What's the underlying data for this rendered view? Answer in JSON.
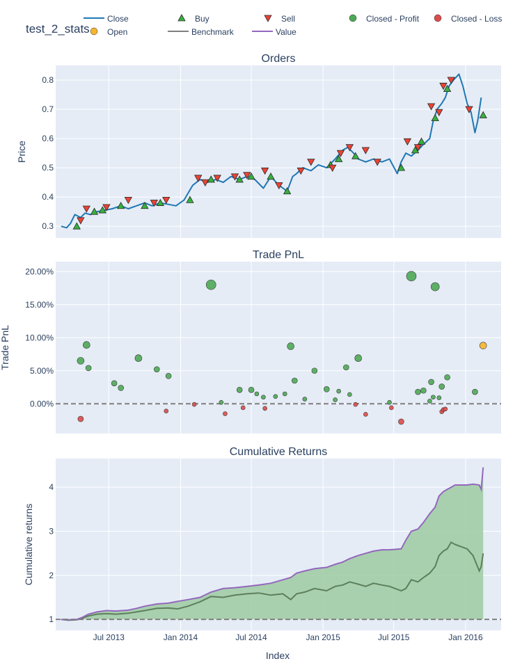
{
  "figure": {
    "title": "test_2_stats",
    "x_axis_title": "Index"
  },
  "legend": {
    "placement": "top",
    "items": [
      {
        "label": "Close",
        "symbol": "line",
        "color": "#1f77b4"
      },
      {
        "label": "Buy",
        "symbol": "triangle-up",
        "color": "#37b13f"
      },
      {
        "label": "Sell",
        "symbol": "triangle-down",
        "color": "#ea4335"
      },
      {
        "label": "Closed - Profit",
        "symbol": "circle",
        "color": "#4ea956"
      },
      {
        "label": "Closed - Loss",
        "symbol": "circle",
        "color": "#dc4c4a"
      },
      {
        "label": "Open",
        "symbol": "circle",
        "color": "#f6b52c"
      },
      {
        "label": "Benchmark",
        "symbol": "line",
        "color": "#7f7f7f"
      },
      {
        "label": "Value",
        "symbol": "line",
        "color": "#9467bd"
      }
    ]
  },
  "colors": {
    "plot_bg": "#e5ecf6",
    "close": "#1f77b4",
    "buy": "#37b13f",
    "sell": "#ea4335",
    "profit": "#4ea956",
    "loss": "#dc4c4a",
    "open": "#f6b52c",
    "benchmark": "#5d7f5b",
    "value": "#9467bd",
    "fill": "#9dcba1",
    "dash": "#7f7f7f"
  },
  "chart_data": [
    {
      "type": "line",
      "title": "Orders",
      "ylabel": "Price",
      "xlim": [
        "2013-02-15",
        "2016-04-01"
      ],
      "ylim": [
        0.26,
        0.85
      ],
      "yticks": [
        0.3,
        0.4,
        0.5,
        0.6,
        0.7,
        0.8
      ],
      "xticks": [
        "2013-07-01",
        "2014-01-01",
        "2014-07-01",
        "2015-01-01",
        "2015-07-01",
        "2016-01-01"
      ],
      "xtick_labels": [
        "Jul 2013",
        "Jan 2014",
        "Jul 2014",
        "Jan 2015",
        "Jul 2015",
        "Jan 2016"
      ],
      "grid": true,
      "series": [
        {
          "name": "Close",
          "x": [
            "2013-03-01",
            "2013-03-15",
            "2013-03-25",
            "2013-04-05",
            "2013-04-20",
            "2013-05-01",
            "2013-05-15",
            "2013-06-01",
            "2013-06-20",
            "2013-07-10",
            "2013-08-01",
            "2013-08-20",
            "2013-09-10",
            "2013-10-01",
            "2013-10-20",
            "2013-11-10",
            "2013-12-01",
            "2013-12-20",
            "2014-01-10",
            "2014-02-01",
            "2014-02-20",
            "2014-03-10",
            "2014-04-01",
            "2014-04-20",
            "2014-05-10",
            "2014-06-01",
            "2014-06-20",
            "2014-07-10",
            "2014-08-01",
            "2014-08-20",
            "2014-09-10",
            "2014-10-01",
            "2014-10-15",
            "2014-10-25",
            "2014-11-10",
            "2014-12-01",
            "2014-12-20",
            "2015-01-10",
            "2015-02-01",
            "2015-02-20",
            "2015-03-05",
            "2015-03-20",
            "2015-04-01",
            "2015-04-20",
            "2015-05-10",
            "2015-06-01",
            "2015-06-20",
            "2015-07-10",
            "2015-07-20",
            "2015-08-01",
            "2015-08-15",
            "2015-09-01",
            "2015-09-15",
            "2015-10-01",
            "2015-10-10",
            "2015-10-20",
            "2015-11-01",
            "2015-11-10",
            "2015-11-20",
            "2015-12-01",
            "2015-12-15",
            "2015-12-25",
            "2016-01-05",
            "2016-01-15",
            "2016-01-25",
            "2016-02-01",
            "2016-02-10"
          ],
          "y": [
            0.3,
            0.295,
            0.31,
            0.34,
            0.33,
            0.345,
            0.34,
            0.35,
            0.355,
            0.36,
            0.37,
            0.36,
            0.37,
            0.38,
            0.37,
            0.38,
            0.375,
            0.37,
            0.39,
            0.44,
            0.46,
            0.45,
            0.46,
            0.45,
            0.47,
            0.46,
            0.47,
            0.46,
            0.43,
            0.47,
            0.44,
            0.42,
            0.47,
            0.48,
            0.5,
            0.49,
            0.51,
            0.5,
            0.53,
            0.56,
            0.57,
            0.55,
            0.53,
            0.52,
            0.53,
            0.52,
            0.53,
            0.48,
            0.52,
            0.55,
            0.54,
            0.56,
            0.58,
            0.6,
            0.66,
            0.7,
            0.72,
            0.74,
            0.78,
            0.8,
            0.82,
            0.78,
            0.72,
            0.69,
            0.62,
            0.66,
            0.74
          ]
        }
      ],
      "buy_points": {
        "x": [
          "2013-04-10",
          "2013-05-25",
          "2013-06-15",
          "2013-08-01",
          "2013-10-01",
          "2013-11-10",
          "2014-01-25",
          "2014-03-20",
          "2014-06-01",
          "2014-07-01",
          "2014-08-20",
          "2014-10-01",
          "2015-01-20",
          "2015-02-10",
          "2015-03-25",
          "2015-07-20",
          "2015-08-25",
          "2015-09-10",
          "2015-10-15",
          "2015-11-15",
          "2016-02-15"
        ],
        "y": [
          0.3,
          0.35,
          0.355,
          0.37,
          0.37,
          0.38,
          0.39,
          0.46,
          0.46,
          0.47,
          0.47,
          0.42,
          0.51,
          0.53,
          0.54,
          0.5,
          0.56,
          0.59,
          0.67,
          0.77,
          0.68
        ]
      },
      "sell_points": {
        "x": [
          "2013-04-20",
          "2013-05-05",
          "2013-06-25",
          "2013-08-20",
          "2013-10-25",
          "2013-11-25",
          "2014-02-15",
          "2014-03-05",
          "2014-04-05",
          "2014-05-20",
          "2014-06-20",
          "2014-08-05",
          "2014-09-10",
          "2014-11-05",
          "2014-12-01",
          "2015-01-25",
          "2015-02-15",
          "2015-03-10",
          "2015-04-20",
          "2015-05-20",
          "2015-08-05",
          "2015-09-01",
          "2015-10-05",
          "2015-10-25",
          "2015-11-05",
          "2015-11-25",
          "2016-01-10"
        ],
        "y": [
          0.32,
          0.36,
          0.365,
          0.39,
          0.38,
          0.39,
          0.465,
          0.45,
          0.465,
          0.47,
          0.475,
          0.49,
          0.44,
          0.49,
          0.52,
          0.5,
          0.55,
          0.57,
          0.56,
          0.52,
          0.59,
          0.57,
          0.71,
          0.69,
          0.78,
          0.8,
          0.7
        ]
      }
    },
    {
      "type": "scatter",
      "title": "Trade PnL",
      "ylabel": "Trade PnL",
      "xlim": [
        "2013-02-15",
        "2016-04-01"
      ],
      "ylim": [
        -0.045,
        0.215
      ],
      "yticks": [
        0,
        0.05,
        0.1,
        0.15,
        0.2
      ],
      "ytick_labels": [
        "0.00%",
        "5.00%",
        "10.00%",
        "15.00%",
        "20.00%"
      ],
      "zero_line": "dashed",
      "grid": true,
      "series": [
        {
          "name": "Closed - Profit",
          "x": [
            "2013-04-20",
            "2013-05-05",
            "2013-05-10",
            "2013-07-15",
            "2013-08-01",
            "2013-09-15",
            "2013-11-01",
            "2013-12-01",
            "2014-03-20",
            "2014-04-15",
            "2014-06-01",
            "2014-07-01",
            "2014-07-15",
            "2014-08-01",
            "2014-09-01",
            "2014-09-25",
            "2014-10-10",
            "2014-10-20",
            "2014-11-15",
            "2014-12-10",
            "2015-01-10",
            "2015-02-01",
            "2015-02-10",
            "2015-03-01",
            "2015-03-10",
            "2015-04-01",
            "2015-06-20",
            "2015-08-15",
            "2015-09-01",
            "2015-09-15",
            "2015-10-01",
            "2015-10-05",
            "2015-10-10",
            "2015-10-15",
            "2015-10-25",
            "2015-11-01",
            "2015-11-15",
            "2016-01-25"
          ],
          "y": [
            0.065,
            0.089,
            0.054,
            0.031,
            0.024,
            0.069,
            0.052,
            0.042,
            0.18,
            0.002,
            0.021,
            0.021,
            0.015,
            0.01,
            0.011,
            0.015,
            0.087,
            0.035,
            0.007,
            0.05,
            0.022,
            0.006,
            0.019,
            0.055,
            0.014,
            0.069,
            0.002,
            0.193,
            0.018,
            0.02,
            0.004,
            0.033,
            0.01,
            0.177,
            0.009,
            0.026,
            0.04,
            0.018
          ]
        },
        {
          "name": "Closed - Loss",
          "x": [
            "2013-04-20",
            "2013-11-25",
            "2014-02-05",
            "2014-04-25",
            "2014-06-10",
            "2014-08-05",
            "2015-03-25",
            "2015-04-20",
            "2015-06-25",
            "2015-07-20",
            "2015-11-01",
            "2015-11-05",
            "2015-11-10"
          ],
          "y": [
            -0.023,
            -0.011,
            -0.001,
            -0.015,
            -0.006,
            -0.007,
            -0.001,
            -0.016,
            -0.006,
            -0.027,
            -0.012,
            -0.009,
            -0.008
          ]
        },
        {
          "name": "Open",
          "x": [
            "2016-02-15"
          ],
          "y": [
            0.088
          ]
        }
      ],
      "marker_size": {
        "Closed - Profit": [
          5,
          5,
          4,
          4,
          4,
          5,
          4,
          4,
          7,
          3,
          4,
          4,
          3,
          3,
          3,
          3,
          5,
          4,
          3,
          4,
          4,
          3,
          3,
          4,
          3,
          5,
          3,
          7,
          4,
          4,
          3,
          4,
          3,
          6,
          3,
          4,
          4,
          4
        ],
        "Closed - Loss": [
          4,
          3,
          3,
          3,
          3,
          3,
          3,
          3,
          3,
          4,
          3,
          3,
          3
        ],
        "Open": [
          5
        ]
      }
    },
    {
      "type": "area",
      "title": "Cumulative Returns",
      "ylabel": "Cumulative returns",
      "xlabel": "Index",
      "xlim": [
        "2013-02-15",
        "2016-04-01"
      ],
      "ylim": [
        0.75,
        4.65
      ],
      "yticks": [
        1,
        2,
        3,
        4
      ],
      "baseline": 1,
      "baseline_style": "dashed",
      "grid": true,
      "series": [
        {
          "name": "Value",
          "x": [
            "2013-03-01",
            "2013-03-20",
            "2013-04-10",
            "2013-04-25",
            "2013-05-10",
            "2013-06-01",
            "2013-06-25",
            "2013-07-20",
            "2013-08-20",
            "2013-09-10",
            "2013-10-01",
            "2013-11-01",
            "2013-12-01",
            "2013-12-25",
            "2014-01-20",
            "2014-02-20",
            "2014-03-20",
            "2014-04-20",
            "2014-05-20",
            "2014-06-20",
            "2014-07-20",
            "2014-08-20",
            "2014-09-20",
            "2014-10-10",
            "2014-10-25",
            "2014-11-15",
            "2014-12-10",
            "2015-01-10",
            "2015-02-01",
            "2015-02-20",
            "2015-03-10",
            "2015-04-01",
            "2015-04-20",
            "2015-05-10",
            "2015-06-01",
            "2015-06-20",
            "2015-07-20",
            "2015-08-01",
            "2015-08-15",
            "2015-09-01",
            "2015-09-15",
            "2015-10-01",
            "2015-10-15",
            "2015-10-25",
            "2015-11-05",
            "2015-11-15",
            "2015-11-25",
            "2015-12-05",
            "2016-01-05",
            "2016-01-20",
            "2016-02-05",
            "2016-02-10",
            "2016-02-15"
          ],
          "y": [
            1.0,
            0.99,
            1.0,
            1.05,
            1.12,
            1.17,
            1.2,
            1.19,
            1.21,
            1.25,
            1.3,
            1.35,
            1.37,
            1.41,
            1.45,
            1.5,
            1.62,
            1.7,
            1.72,
            1.75,
            1.78,
            1.82,
            1.9,
            1.95,
            2.05,
            2.1,
            2.15,
            2.18,
            2.25,
            2.3,
            2.38,
            2.45,
            2.5,
            2.55,
            2.58,
            2.58,
            2.6,
            2.8,
            3.0,
            3.05,
            3.2,
            3.4,
            3.55,
            3.8,
            3.9,
            3.95,
            4.0,
            4.05,
            4.05,
            4.07,
            4.05,
            3.95,
            4.45
          ]
        },
        {
          "name": "Benchmark",
          "x": [
            "2013-03-01",
            "2013-03-20",
            "2013-04-10",
            "2013-04-25",
            "2013-05-10",
            "2013-06-01",
            "2013-06-25",
            "2013-07-20",
            "2013-08-20",
            "2013-09-10",
            "2013-10-01",
            "2013-11-01",
            "2013-12-01",
            "2013-12-25",
            "2014-01-20",
            "2014-02-20",
            "2014-03-20",
            "2014-04-20",
            "2014-05-20",
            "2014-06-20",
            "2014-07-20",
            "2014-08-20",
            "2014-09-20",
            "2014-10-10",
            "2014-10-25",
            "2014-11-15",
            "2014-12-10",
            "2015-01-10",
            "2015-02-01",
            "2015-02-20",
            "2015-03-10",
            "2015-04-01",
            "2015-04-20",
            "2015-05-10",
            "2015-06-01",
            "2015-06-20",
            "2015-07-20",
            "2015-08-01",
            "2015-08-15",
            "2015-09-01",
            "2015-09-15",
            "2015-10-01",
            "2015-10-15",
            "2015-10-25",
            "2015-11-05",
            "2015-11-15",
            "2015-11-25",
            "2015-12-05",
            "2016-01-05",
            "2016-01-20",
            "2016-02-05",
            "2016-02-10",
            "2016-02-15"
          ],
          "y": [
            1.0,
            0.98,
            0.99,
            1.03,
            1.08,
            1.12,
            1.13,
            1.12,
            1.14,
            1.17,
            1.2,
            1.25,
            1.26,
            1.24,
            1.3,
            1.4,
            1.52,
            1.5,
            1.55,
            1.58,
            1.6,
            1.55,
            1.58,
            1.45,
            1.58,
            1.62,
            1.7,
            1.65,
            1.75,
            1.78,
            1.85,
            1.8,
            1.75,
            1.82,
            1.78,
            1.75,
            1.65,
            1.7,
            1.9,
            1.85,
            1.95,
            2.05,
            2.2,
            2.45,
            2.55,
            2.6,
            2.75,
            2.7,
            2.6,
            2.45,
            2.1,
            2.2,
            2.5
          ]
        }
      ]
    }
  ]
}
